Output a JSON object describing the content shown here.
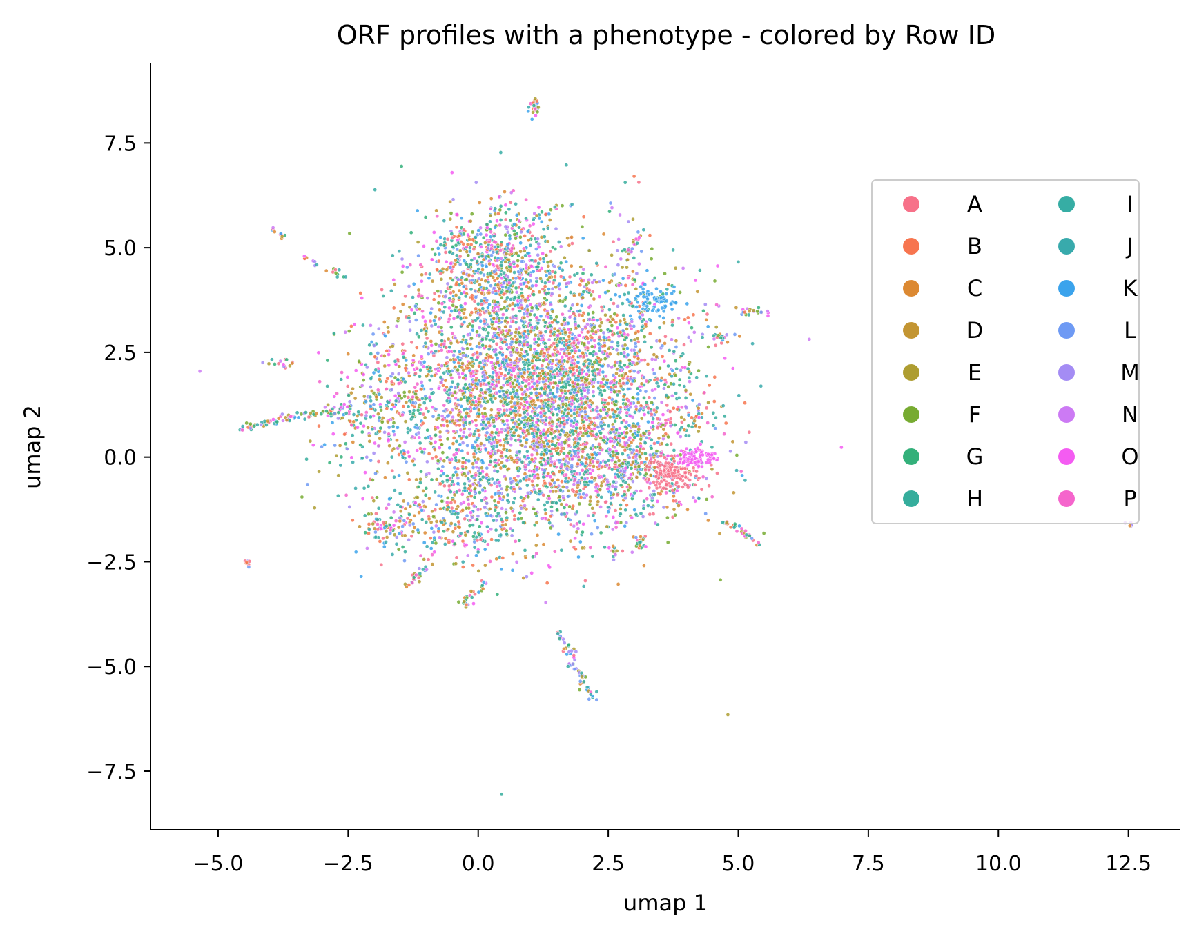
{
  "chart_data": {
    "type": "scatter",
    "title": "ORF profiles with a phenotype - colored by Row ID",
    "xlabel": "umap 1",
    "ylabel": "umap 2",
    "xlim": [
      -6.3,
      13.5
    ],
    "ylim": [
      -8.9,
      9.4
    ],
    "xticks": [
      -5.0,
      -2.5,
      0.0,
      2.5,
      5.0,
      7.5,
      10.0,
      12.5
    ],
    "xtick_labels": [
      "−5.0",
      "−2.5",
      "0.0",
      "2.5",
      "5.0",
      "7.5",
      "10.0",
      "12.5"
    ],
    "yticks": [
      -7.5,
      -5.0,
      -2.5,
      0.0,
      2.5,
      5.0,
      7.5
    ],
    "ytick_labels": [
      "−7.5",
      "−5.0",
      "−2.5",
      "0.0",
      "2.5",
      "5.0",
      "7.5"
    ],
    "grid": false,
    "legend_position": "right",
    "legend_columns": 2,
    "series": [
      {
        "name": "A",
        "color": "#f77189"
      },
      {
        "name": "B",
        "color": "#f7754f"
      },
      {
        "name": "C",
        "color": "#dc8932"
      },
      {
        "name": "D",
        "color": "#c39532"
      },
      {
        "name": "E",
        "color": "#ae9d31"
      },
      {
        "name": "F",
        "color": "#77ab31"
      },
      {
        "name": "G",
        "color": "#33b07a"
      },
      {
        "name": "H",
        "color": "#35ad9c"
      },
      {
        "name": "I",
        "color": "#36ada4"
      },
      {
        "name": "J",
        "color": "#38aaac"
      },
      {
        "name": "K",
        "color": "#3ba3ec"
      },
      {
        "name": "L",
        "color": "#6e9af4"
      },
      {
        "name": "M",
        "color": "#a48cf4"
      },
      {
        "name": "N",
        "color": "#cc7af4"
      },
      {
        "name": "O",
        "color": "#f45cf2"
      },
      {
        "name": "P",
        "color": "#f565cc"
      }
    ],
    "clusters": [
      {
        "cx": 1.2,
        "cy": 1.6,
        "sx": 1.35,
        "sy": 1.5,
        "n": 4200,
        "mix": true
      },
      {
        "cx": 0.3,
        "cy": 4.6,
        "sx": 0.6,
        "sy": 0.7,
        "n": 600,
        "mix": true
      },
      {
        "cx": 2.6,
        "cy": -0.3,
        "sx": 0.9,
        "sy": 0.6,
        "n": 500,
        "mix": true
      },
      {
        "cx": 3.7,
        "cy": -0.4,
        "sx": 0.25,
        "sy": 0.18,
        "n": 150,
        "series": "A"
      },
      {
        "cx": 4.2,
        "cy": 0.0,
        "sx": 0.18,
        "sy": 0.12,
        "n": 90,
        "series": "O"
      },
      {
        "cx": 3.4,
        "cy": 3.7,
        "sx": 0.25,
        "sy": 0.15,
        "n": 70,
        "series": "K"
      },
      {
        "cx": -0.3,
        "cy": -1.5,
        "sx": 0.8,
        "sy": 0.6,
        "n": 300,
        "mix": true
      },
      {
        "cx": -1.8,
        "cy": 1.2,
        "sx": 0.6,
        "sy": 0.9,
        "n": 300,
        "mix": true
      },
      {
        "cx": 1.1,
        "cy": 8.4,
        "sx": 0.05,
        "sy": 0.12,
        "n": 30,
        "mix": true
      },
      {
        "cx": -1.8,
        "cy": -1.7,
        "sx": 0.25,
        "sy": 0.18,
        "n": 60,
        "mix": true
      },
      {
        "cx": 3.1,
        "cy": -2.05,
        "sx": 0.05,
        "sy": 0.12,
        "n": 15,
        "mix": true
      },
      {
        "cx": 2.6,
        "cy": -2.3,
        "sx": 0.04,
        "sy": 0.1,
        "n": 10,
        "mix": true
      },
      {
        "cx": -4.45,
        "cy": -2.55,
        "sx": 0.04,
        "sy": 0.06,
        "n": 8,
        "mix": true
      },
      {
        "cx": 5.3,
        "cy": 3.45,
        "sx": 0.15,
        "sy": 0.06,
        "n": 20,
        "mix": true
      },
      {
        "cx": 4.8,
        "cy": 2.85,
        "sx": 0.2,
        "sy": 0.06,
        "n": 15,
        "mix": true
      },
      {
        "cx": 12.45,
        "cy": -1.6,
        "sx": 0.06,
        "sy": 0.03,
        "n": 6,
        "mix": true
      },
      {
        "cx": -3.8,
        "cy": 2.25,
        "sx": 0.15,
        "sy": 0.06,
        "n": 15,
        "mix": true
      },
      {
        "cx": 4.1,
        "cy": 0.9,
        "sx": 0.3,
        "sy": 0.15,
        "n": 30,
        "mix": true
      }
    ],
    "lines": [
      {
        "x0": -4.6,
        "y0": 0.7,
        "x1": -2.4,
        "y1": 1.2,
        "n": 90,
        "spread": 0.05,
        "mix": true
      },
      {
        "x0": 1.5,
        "y0": -4.1,
        "x1": 2.2,
        "y1": -5.8,
        "n": 60,
        "spread": 0.06,
        "mix": true
      },
      {
        "x0": 4.6,
        "y0": -1.4,
        "x1": 5.4,
        "y1": -2.05,
        "n": 30,
        "spread": 0.04,
        "mix": true
      },
      {
        "x0": -3.4,
        "y0": 4.8,
        "x1": -2.6,
        "y1": 4.3,
        "n": 18,
        "spread": 0.05,
        "mix": true
      },
      {
        "x0": -4.0,
        "y0": 5.45,
        "x1": -3.7,
        "y1": 5.25,
        "n": 10,
        "spread": 0.03,
        "mix": true
      },
      {
        "x0": 2.75,
        "y0": 4.7,
        "x1": 3.2,
        "y1": 5.4,
        "n": 25,
        "spread": 0.05,
        "mix": true
      },
      {
        "x0": 0.9,
        "y0": 5.6,
        "x1": 1.6,
        "y1": 6.0,
        "n": 20,
        "spread": 0.05,
        "mix": true
      },
      {
        "x0": -1.4,
        "y0": -3.1,
        "x1": -1.0,
        "y1": -2.6,
        "n": 18,
        "spread": 0.04,
        "mix": true
      },
      {
        "x0": -0.3,
        "y0": -3.55,
        "x1": 0.1,
        "y1": -3.0,
        "n": 25,
        "spread": 0.05,
        "mix": true
      }
    ],
    "singletons": [
      {
        "x": -5.35,
        "y": 2.05,
        "series": "N"
      },
      {
        "x": 4.8,
        "y": -6.15,
        "series": "E"
      },
      {
        "x": 0.45,
        "y": -8.05,
        "series": "H"
      },
      {
        "x": -2.25,
        "y": -2.85,
        "series": "K"
      },
      {
        "x": -3.3,
        "y": -0.05,
        "series": "H"
      },
      {
        "x": 3.8,
        "y": -1.05,
        "series": "A"
      },
      {
        "x": 2.0,
        "y": 5.5,
        "series": "F"
      }
    ]
  }
}
